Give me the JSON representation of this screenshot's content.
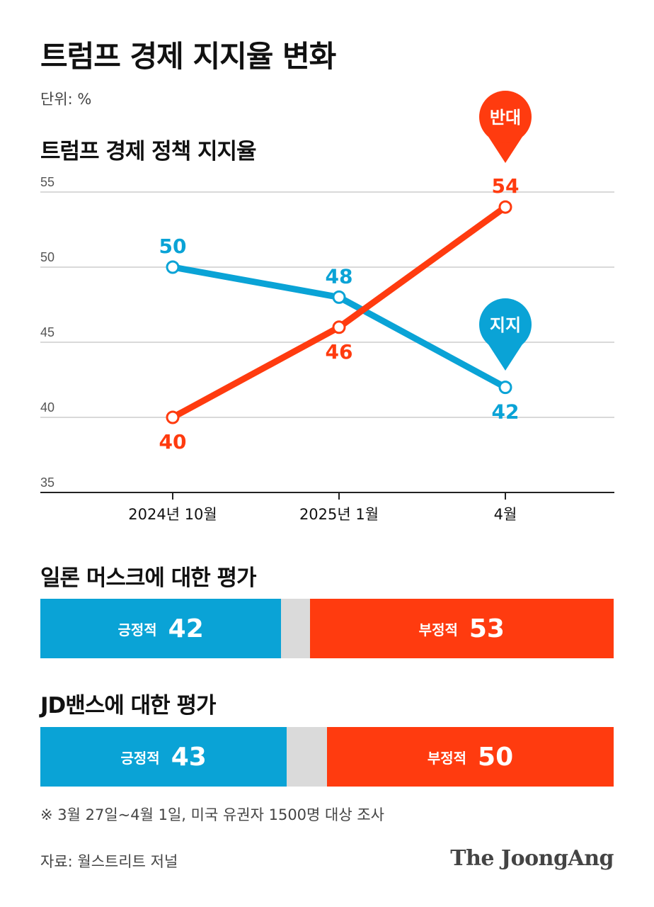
{
  "title": "트럼프 경제 지지율 변화",
  "unit": "단위: %",
  "subtitle": "트럼프 경제 정책 지지율",
  "colors": {
    "support": "#0aa3d6",
    "oppose": "#ff3b0f",
    "neutral": "#dadada",
    "grid": "#d9d9d9"
  },
  "chart_data": {
    "type": "line",
    "title": "트럼프 경제 정책 지지율",
    "categories": [
      "2024년 10월",
      "2025년 1월",
      "4월"
    ],
    "ylim": [
      35,
      55
    ],
    "yticks": [
      35,
      40,
      45,
      50,
      55
    ],
    "series": [
      {
        "name": "지지",
        "color": "#0aa3d6",
        "values": [
          50,
          48,
          42
        ]
      },
      {
        "name": "반대",
        "color": "#ff3b0f",
        "values": [
          40,
          46,
          54
        ]
      }
    ],
    "xlabel": "",
    "ylabel": ""
  },
  "musk": {
    "title": "일론 머스크에 대한 평가",
    "positive_label": "긍정적",
    "positive_value": 42,
    "negative_label": "부정적",
    "negative_value": 53
  },
  "vance": {
    "title": "JD밴스에 대한 평가",
    "positive_label": "긍정적",
    "positive_value": 43,
    "negative_label": "부정적",
    "negative_value": 50
  },
  "footnote": "※ 3월 27일~4월 1일, 미국 유권자 1500명 대상 조사",
  "source": "자료: 월스트리트 저널",
  "brand": "The JoongAng"
}
